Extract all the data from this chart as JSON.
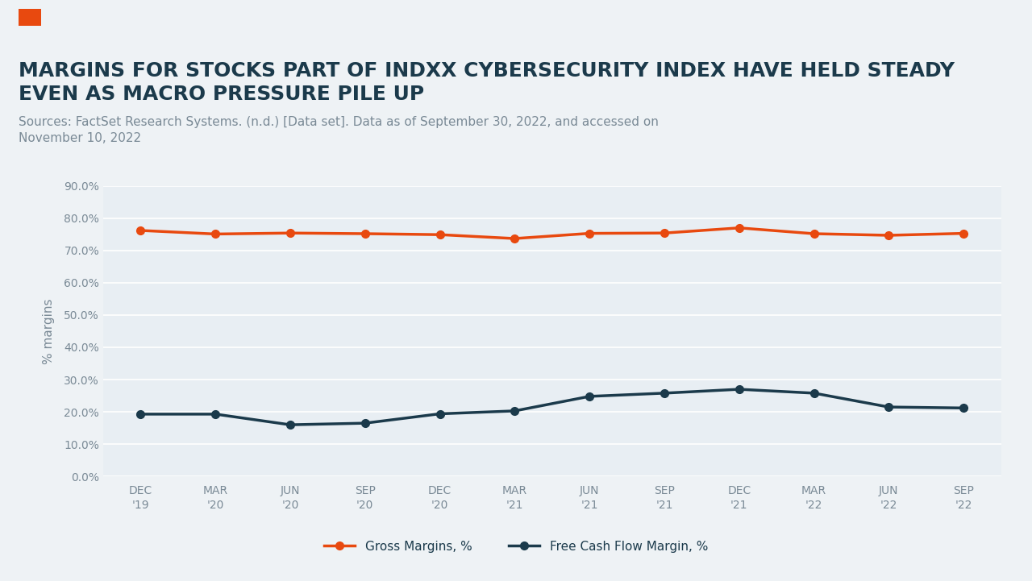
{
  "title": "MARGINS FOR STOCKS PART OF INDXX CYBERSECURITY INDEX HAVE HELD STEADY\nEVEN AS MACRO PRESSURE PILE UP",
  "subtitle": "Sources: FactSet Research Systems. (n.d.) [Data set]. Data as of September 30, 2022, and accessed on\nNovember 10, 2022",
  "ylabel": "% margins",
  "ylim": [
    0.0,
    0.9
  ],
  "yticks": [
    0.0,
    0.1,
    0.2,
    0.3,
    0.4,
    0.5,
    0.6,
    0.7,
    0.8,
    0.9
  ],
  "x_labels": [
    "DEC\n'19",
    "MAR\n'20",
    "JUN\n'20",
    "SEP\n'20",
    "DEC\n'20",
    "MAR\n'21",
    "JUN\n'21",
    "SEP\n'21",
    "DEC\n'21",
    "MAR\n'22",
    "JUN\n'22",
    "SEP\n'22"
  ],
  "gross_margins": [
    0.762,
    0.751,
    0.754,
    0.752,
    0.749,
    0.737,
    0.753,
    0.754,
    0.77,
    0.752,
    0.747,
    0.753
  ],
  "fcf_margins": [
    0.193,
    0.193,
    0.16,
    0.165,
    0.194,
    0.203,
    0.248,
    0.258,
    0.27,
    0.258,
    0.215,
    0.212
  ],
  "gross_color": "#E8490F",
  "fcf_color": "#1B3A4B",
  "background_color": "#EEF2F5",
  "plot_bg_color": "#E8EEF3",
  "title_color": "#1B3A4B",
  "subtitle_color": "#7A8A96",
  "tick_color": "#7A8A96",
  "grid_color": "#FFFFFF",
  "legend_label_gross": "Gross Margins, %",
  "legend_label_fcf": "Free Cash Flow Margin, %",
  "orange_rect_color": "#E8490F",
  "title_fontsize": 18,
  "subtitle_fontsize": 11,
  "ylabel_fontsize": 11,
  "tick_fontsize": 10,
  "legend_fontsize": 11,
  "line_width": 2.5,
  "marker_size": 7
}
